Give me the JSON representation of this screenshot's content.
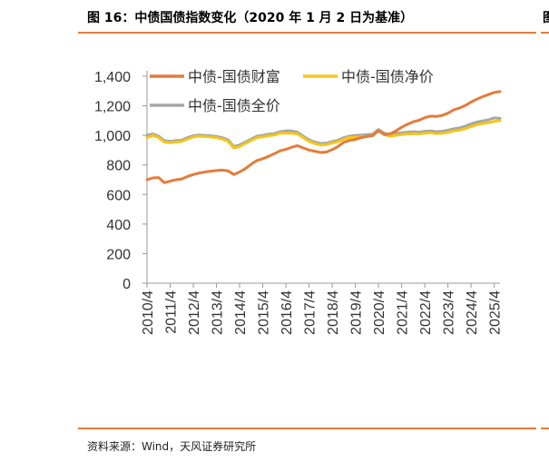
{
  "figure": {
    "title": "图 16：中债国债指数变化（2020 年 1 月 2 日为基准）",
    "next_title_fragment": "图",
    "source": "资料来源：Wind，天风证券研究所"
  },
  "colors": {
    "wealth": "#e57b3a",
    "net": "#f5c518",
    "full": "#a6a6a6",
    "accent": "#e57b3a"
  },
  "chart_data": {
    "type": "line",
    "title": "",
    "xlabel": "",
    "ylabel": "",
    "ylim": [
      0,
      1400
    ],
    "yticks": [
      0,
      200,
      400,
      600,
      800,
      1000,
      1200,
      1400
    ],
    "ytick_labels": [
      "0",
      "200",
      "400",
      "600",
      "800",
      "1,000",
      "1,200",
      "1,400"
    ],
    "xlim": [
      2010.25,
      2025.5
    ],
    "xticks": [
      2010.25,
      2011.25,
      2012.25,
      2013.25,
      2014.25,
      2015.25,
      2016.25,
      2017.25,
      2018.25,
      2019.25,
      2020.25,
      2021.25,
      2022.25,
      2023.25,
      2024.25,
      2025.25
    ],
    "xtick_labels": [
      "2010/4",
      "2011/4",
      "2012/4",
      "2013/4",
      "2014/4",
      "2015/4",
      "2016/4",
      "2017/4",
      "2018/4",
      "2019/4",
      "2020/4",
      "2021/4",
      "2022/4",
      "2023/4",
      "2024/4",
      "2025/4"
    ],
    "grid": false,
    "legend_position": "top-left",
    "series": [
      {
        "name": "中债-国债财富",
        "color_key": "wealth",
        "x": [
          2010.25,
          2010.5,
          2010.75,
          2011.0,
          2011.25,
          2011.5,
          2011.75,
          2012.0,
          2012.25,
          2012.5,
          2012.75,
          2013.0,
          2013.25,
          2013.5,
          2013.75,
          2014.0,
          2014.25,
          2014.5,
          2014.75,
          2015.0,
          2015.25,
          2015.5,
          2015.75,
          2016.0,
          2016.25,
          2016.5,
          2016.75,
          2017.0,
          2017.25,
          2017.5,
          2017.75,
          2018.0,
          2018.25,
          2018.5,
          2018.75,
          2019.0,
          2019.25,
          2019.5,
          2019.75,
          2020.0,
          2020.25,
          2020.5,
          2020.75,
          2021.0,
          2021.25,
          2021.5,
          2021.75,
          2022.0,
          2022.25,
          2022.5,
          2022.75,
          2023.0,
          2023.25,
          2023.5,
          2023.75,
          2024.0,
          2024.25,
          2024.5,
          2024.75,
          2025.0,
          2025.25,
          2025.5
        ],
        "values": [
          700,
          712,
          715,
          680,
          690,
          700,
          705,
          722,
          735,
          745,
          752,
          758,
          762,
          765,
          760,
          735,
          752,
          775,
          805,
          830,
          842,
          858,
          876,
          896,
          905,
          920,
          930,
          915,
          900,
          893,
          884,
          887,
          903,
          925,
          953,
          965,
          972,
          985,
          992,
          998,
          1032,
          1005,
          1010,
          1030,
          1055,
          1075,
          1092,
          1102,
          1120,
          1130,
          1128,
          1135,
          1150,
          1172,
          1185,
          1202,
          1225,
          1245,
          1262,
          1276,
          1290,
          1296
        ]
      },
      {
        "name": "中债-国债净价",
        "color_key": "net",
        "x": [
          2010.25,
          2010.5,
          2010.75,
          2011.0,
          2011.25,
          2011.5,
          2011.75,
          2012.0,
          2012.25,
          2012.5,
          2012.75,
          2013.0,
          2013.25,
          2013.5,
          2013.75,
          2014.0,
          2014.25,
          2014.5,
          2014.75,
          2015.0,
          2015.25,
          2015.5,
          2015.75,
          2016.0,
          2016.25,
          2016.5,
          2016.75,
          2017.0,
          2017.25,
          2017.5,
          2017.75,
          2018.0,
          2018.25,
          2018.5,
          2018.75,
          2019.0,
          2019.25,
          2019.5,
          2019.75,
          2020.0,
          2020.25,
          2020.5,
          2020.75,
          2021.0,
          2021.25,
          2021.5,
          2021.75,
          2022.0,
          2022.25,
          2022.5,
          2022.75,
          2023.0,
          2023.25,
          2023.5,
          2023.75,
          2024.0,
          2024.25,
          2024.5,
          2024.75,
          2025.0,
          2025.25,
          2025.5
        ],
        "values": [
          985,
          1000,
          985,
          955,
          950,
          955,
          960,
          975,
          990,
          995,
          992,
          990,
          985,
          975,
          960,
          915,
          925,
          945,
          965,
          985,
          990,
          998,
          1002,
          1015,
          1015,
          1015,
          1010,
          985,
          960,
          945,
          935,
          938,
          948,
          958,
          975,
          985,
          988,
          990,
          993,
          998,
          1030,
          1005,
          995,
          1000,
          1005,
          1010,
          1012,
          1010,
          1015,
          1018,
          1012,
          1015,
          1020,
          1030,
          1035,
          1045,
          1060,
          1072,
          1080,
          1085,
          1095,
          1100
        ]
      },
      {
        "name": "中债-国债全价",
        "color_key": "full",
        "x": [
          2010.25,
          2010.5,
          2010.75,
          2011.0,
          2011.25,
          2011.5,
          2011.75,
          2012.0,
          2012.25,
          2012.5,
          2012.75,
          2013.0,
          2013.25,
          2013.5,
          2013.75,
          2014.0,
          2014.25,
          2014.5,
          2014.75,
          2015.0,
          2015.25,
          2015.5,
          2015.75,
          2016.0,
          2016.25,
          2016.5,
          2016.75,
          2017.0,
          2017.25,
          2017.5,
          2017.75,
          2018.0,
          2018.25,
          2018.5,
          2018.75,
          2019.0,
          2019.25,
          2019.5,
          2019.75,
          2020.0,
          2020.25,
          2020.5,
          2020.75,
          2021.0,
          2021.25,
          2021.5,
          2021.75,
          2022.0,
          2022.25,
          2022.5,
          2022.75,
          2023.0,
          2023.25,
          2023.5,
          2023.75,
          2024.0,
          2024.25,
          2024.5,
          2024.75,
          2025.0,
          2025.25,
          2025.5
        ],
        "values": [
          1000,
          1010,
          995,
          965,
          960,
          965,
          968,
          985,
          998,
          1003,
          1000,
          998,
          993,
          985,
          970,
          925,
          935,
          955,
          975,
          995,
          1000,
          1008,
          1012,
          1025,
          1030,
          1030,
          1022,
          995,
          970,
          955,
          945,
          948,
          958,
          968,
          985,
          995,
          1000,
          1002,
          1005,
          1008,
          1040,
          1015,
          1005,
          1012,
          1018,
          1022,
          1025,
          1022,
          1028,
          1030,
          1025,
          1028,
          1035,
          1045,
          1050,
          1062,
          1078,
          1090,
          1098,
          1105,
          1118,
          1115
        ]
      }
    ]
  }
}
